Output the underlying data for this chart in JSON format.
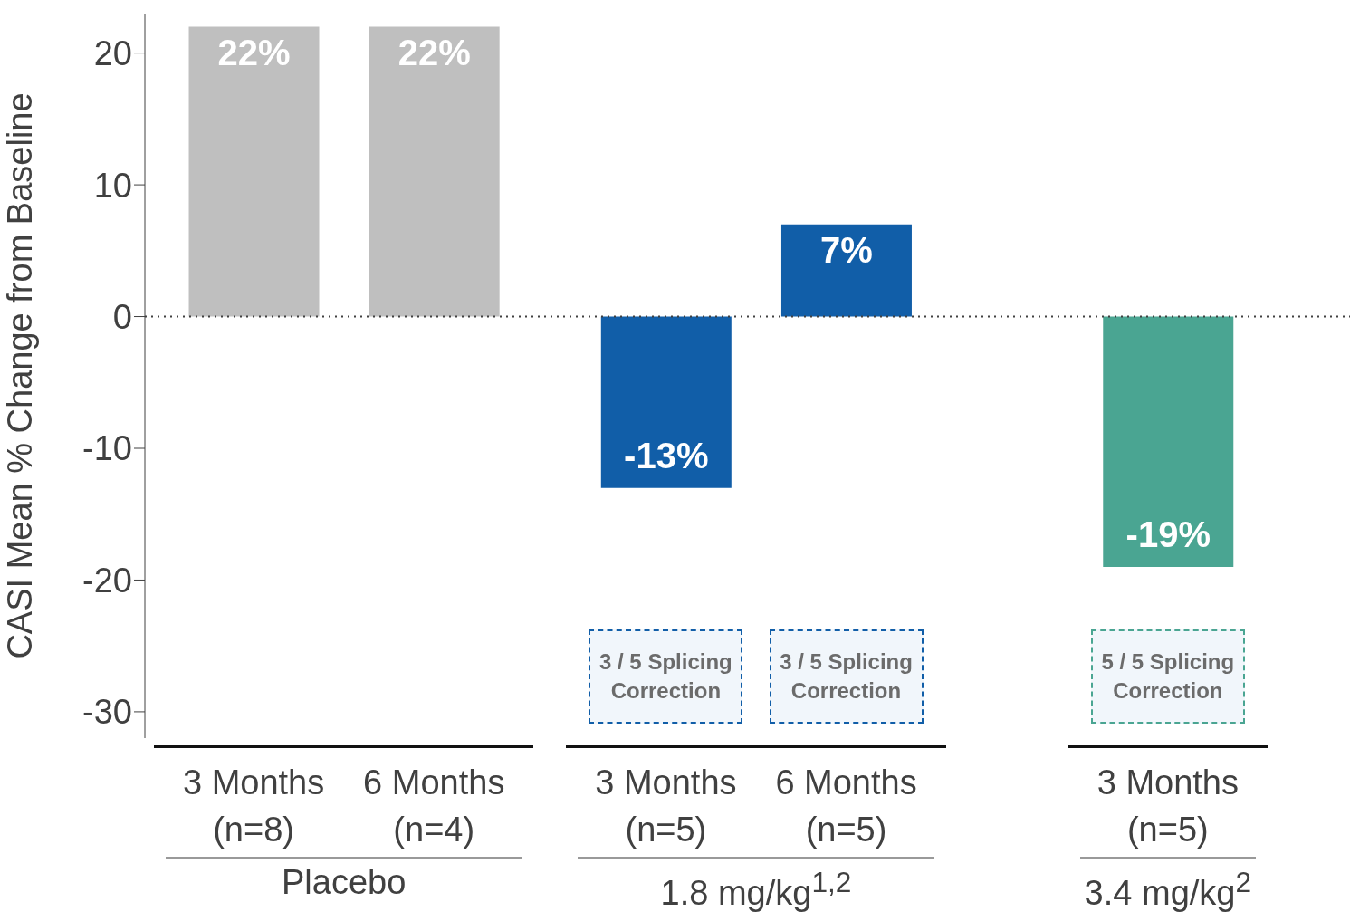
{
  "chart_data": {
    "type": "bar",
    "ylabel": "CASI Mean % Change from Baseline",
    "categories": [
      "3 Months (n=8)",
      "6 Months (n=4)",
      "3 Months (n=5)",
      "6 Months (n=5)",
      "3 Months (n=5)"
    ],
    "values": [
      22,
      22,
      -13,
      7,
      -19
    ],
    "colors": [
      "#bfbfbf",
      "#bfbfbf",
      "#115ea8",
      "#115ea8",
      "#4aa592"
    ],
    "value_labels": [
      "22%",
      "22%",
      "-13%",
      "7%",
      "-19%"
    ],
    "ylim": [
      -32,
      23
    ],
    "yticks": [
      20,
      10,
      0,
      -10,
      -20,
      -30
    ],
    "grid": false,
    "legend": false,
    "ref_lines": [
      {
        "axis": "y",
        "value": 0,
        "line_style": "dotted",
        "color": "#404040"
      }
    ],
    "annotations": [
      "3 / 5 Splicing Correction",
      "3 / 5 Splicing Correction",
      "5 / 5 Splicing Correction",
      "Placebo",
      "1.8 mg/kg$^{1,2}$",
      "3.4 mg/kg$^{2}$"
    ]
  }
}
